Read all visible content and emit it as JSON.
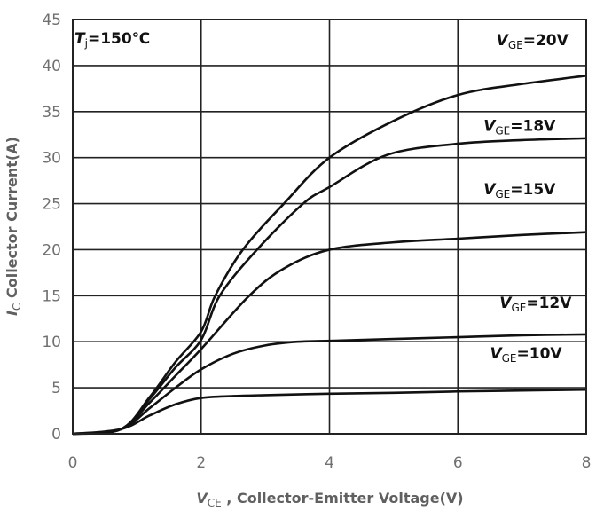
{
  "chart_data": {
    "type": "line",
    "title": "",
    "xlabel": "V_CE , Collector-Emitter Voltage(V)",
    "xlabel_parts": {
      "main": "V",
      "sub": "CE",
      "rest": " , Collector-Emitter Voltage(V)"
    },
    "ylabel": "I_C Collector Current(A)",
    "ylabel_parts": {
      "main": "I",
      "sub": "C",
      "rest": " Collector Current(A)"
    },
    "xlim": [
      0,
      8
    ],
    "ylim": [
      0,
      45
    ],
    "x_ticks": [
      0,
      2,
      4,
      6,
      8
    ],
    "y_ticks": [
      0,
      5,
      10,
      15,
      20,
      25,
      30,
      35,
      40,
      45
    ],
    "grid": true,
    "legend": "inline annotations",
    "annotation": {
      "main": "T",
      "sub": "j",
      "rest": "=150℃",
      "x": 0.05,
      "y": 43
    },
    "series": [
      {
        "name": "V_GE=20V",
        "label": {
          "main": "V",
          "sub": "GE",
          "rest": "=20V"
        },
        "x": [
          0,
          0.75,
          1.2,
          1.6,
          2.0,
          2.22,
          2.65,
          3.29,
          4.0,
          5.0,
          6.0,
          7.0,
          8.0
        ],
        "y": [
          0,
          0.5,
          4.0,
          7.8,
          11.1,
          15.0,
          20.0,
          25.0,
          30.0,
          34.0,
          36.8,
          38.0,
          38.9
        ]
      },
      {
        "name": "V_GE=18V",
        "label": {
          "main": "V",
          "sub": "GE",
          "rest": "=18V"
        },
        "x": [
          0,
          0.75,
          1.2,
          1.6,
          2.0,
          2.29,
          2.87,
          3.59,
          4.0,
          4.9,
          6.0,
          7.0,
          8.0
        ],
        "y": [
          0,
          0.5,
          3.8,
          7.2,
          10.2,
          15.0,
          20.0,
          25.0,
          26.8,
          30.3,
          31.5,
          31.9,
          32.1
        ]
      },
      {
        "name": "V_GE=15V",
        "label": {
          "main": "V",
          "sub": "GE",
          "rest": "=15V"
        },
        "x": [
          0,
          0.75,
          1.2,
          1.6,
          2.0,
          2.75,
          3.3,
          4.0,
          5.0,
          6.0,
          7.0,
          8.0
        ],
        "y": [
          0,
          0.5,
          3.4,
          6.3,
          9.2,
          15.0,
          18.0,
          20.0,
          20.8,
          21.2,
          21.6,
          21.9
        ]
      },
      {
        "name": "V_GE=12V",
        "label": {
          "main": "V",
          "sub": "GE",
          "rest": "=12V"
        },
        "x": [
          0,
          0.75,
          1.2,
          1.6,
          2.0,
          2.5,
          3.0,
          3.5,
          4.0,
          5.0,
          6.0,
          7.0,
          8.0
        ],
        "y": [
          0,
          0.5,
          2.8,
          5.0,
          7.0,
          8.7,
          9.6,
          10.0,
          10.1,
          10.3,
          10.5,
          10.7,
          10.8
        ]
      },
      {
        "name": "V_GE=10V",
        "label": {
          "main": "V",
          "sub": "GE",
          "rest": "=10V"
        },
        "x": [
          0,
          0.75,
          1.2,
          1.6,
          2.0,
          2.5,
          3.0,
          4.0,
          5.0,
          6.0,
          7.0,
          8.0
        ],
        "y": [
          0,
          0.5,
          2.0,
          3.2,
          3.9,
          4.1,
          4.2,
          4.35,
          4.45,
          4.6,
          4.7,
          4.8
        ]
      }
    ],
    "series_label_positions": [
      {
        "x": 6.6,
        "y": 42.2
      },
      {
        "x": 6.4,
        "y": 32.9
      },
      {
        "x": 6.4,
        "y": 26.0
      },
      {
        "x": 6.65,
        "y": 13.7
      },
      {
        "x": 6.5,
        "y": 8.2
      }
    ],
    "line_color": "#111111",
    "grid_color": "#222222"
  }
}
